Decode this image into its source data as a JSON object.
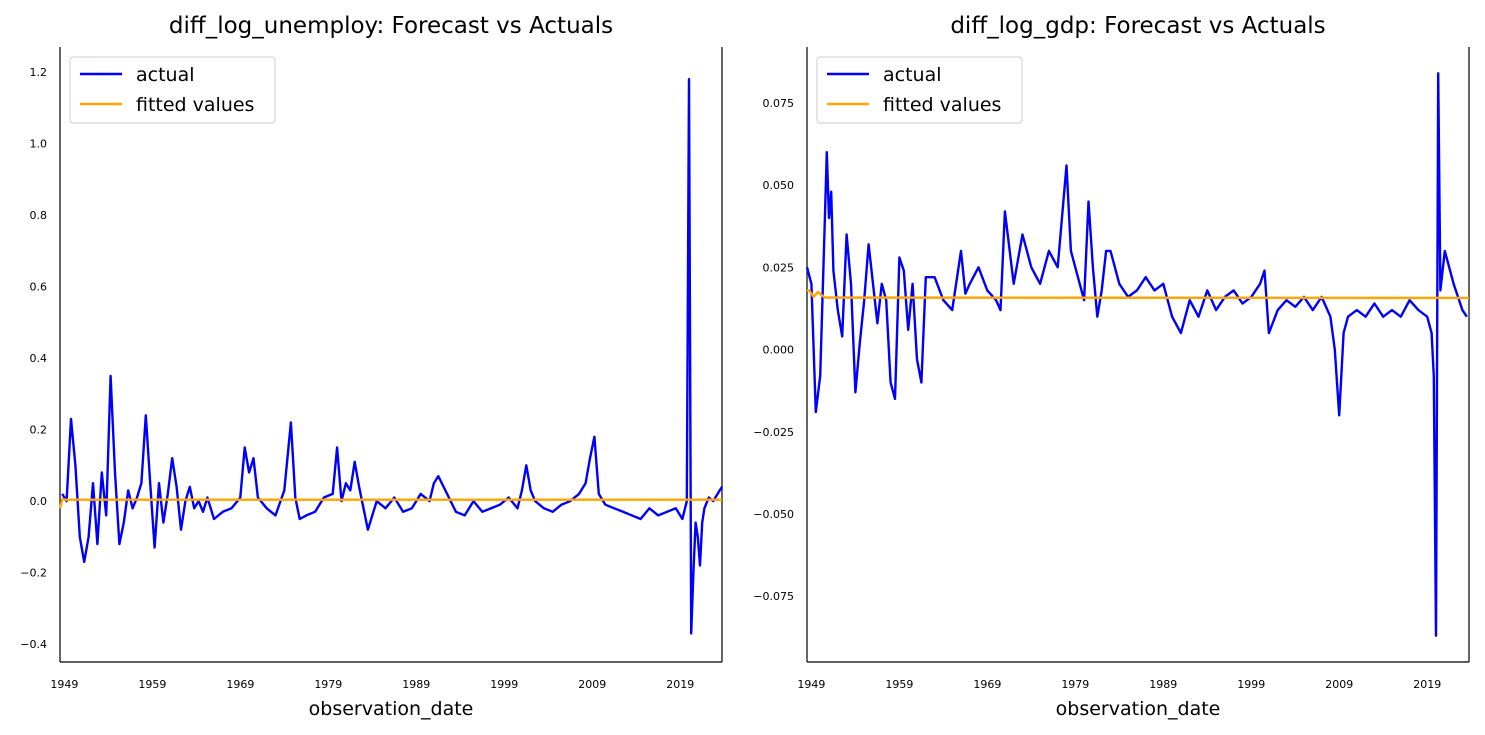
{
  "chart_data": [
    {
      "type": "line",
      "title": "diff_log_unemploy: Forecast vs Actuals",
      "xlabel": "observation_date",
      "ylabel": "",
      "x_unit": "year",
      "xlim": [
        1948.5,
        2023.75
      ],
      "ylim": [
        -0.45,
        1.27
      ],
      "xticks": [
        1949,
        1959,
        1969,
        1979,
        1989,
        1999,
        2009,
        2019
      ],
      "xtick_labels": [
        "1949",
        "1959",
        "1969",
        "1979",
        "1989",
        "1999",
        "2009",
        "2019"
      ],
      "yticks": [
        -0.4,
        -0.2,
        0.0,
        0.2,
        0.4,
        0.6,
        0.8,
        1.0,
        1.2
      ],
      "ytick_labels": [
        "−0.4",
        "−0.2",
        "0.0",
        "0.2",
        "0.4",
        "0.6",
        "0.8",
        "1.0",
        "1.2"
      ],
      "legend": {
        "position": "top-left",
        "entries": [
          "actual",
          "fitted values"
        ]
      },
      "series": [
        {
          "name": "actual",
          "color": "#0000ff",
          "x": [
            1948.75,
            1949.25,
            1949.75,
            1950.25,
            1950.75,
            1951.25,
            1951.75,
            1952.25,
            1952.75,
            1953.25,
            1953.75,
            1954.25,
            1954.75,
            1955.25,
            1955.75,
            1956.25,
            1956.75,
            1957.25,
            1957.75,
            1958.25,
            1958.75,
            1959.25,
            1959.75,
            1960.25,
            1960.75,
            1961.25,
            1961.75,
            1962.25,
            1962.75,
            1963.25,
            1963.75,
            1964.25,
            1964.75,
            1965.25,
            1966.0,
            1967.0,
            1968.0,
            1969.0,
            1969.5,
            1970.0,
            1970.5,
            1971.0,
            1972.0,
            1973.0,
            1974.0,
            1974.75,
            1975.25,
            1975.75,
            1976.5,
            1977.5,
            1978.5,
            1979.5,
            1980.0,
            1980.5,
            1981.0,
            1981.5,
            1982.0,
            1982.5,
            1983.0,
            1983.5,
            1984.5,
            1985.5,
            1986.5,
            1987.5,
            1988.5,
            1989.5,
            1990.5,
            1991.0,
            1991.5,
            1992.5,
            1993.5,
            1994.5,
            1995.5,
            1996.5,
            1997.5,
            1998.5,
            1999.5,
            2000.5,
            2001.0,
            2001.5,
            2002.0,
            2002.5,
            2003.5,
            2004.5,
            2005.5,
            2006.5,
            2007.5,
            2008.25,
            2008.75,
            2009.25,
            2009.75,
            2010.5,
            2011.5,
            2012.5,
            2013.5,
            2014.5,
            2015.5,
            2016.5,
            2017.5,
            2018.5,
            2019.25,
            2019.75,
            2020.0,
            2020.25,
            2020.5,
            2020.75,
            2021.0,
            2021.25,
            2021.5,
            2021.75,
            2022.25,
            2022.75,
            2023.25,
            2023.75
          ],
          "y": [
            0.02,
            0.0,
            0.23,
            0.1,
            -0.1,
            -0.17,
            -0.1,
            0.05,
            -0.12,
            0.08,
            -0.04,
            0.35,
            0.08,
            -0.12,
            -0.06,
            0.03,
            -0.02,
            0.01,
            0.05,
            0.24,
            0.05,
            -0.13,
            0.05,
            -0.06,
            0.02,
            0.12,
            0.04,
            -0.08,
            0.0,
            0.04,
            -0.02,
            0.0,
            -0.03,
            0.01,
            -0.05,
            -0.03,
            -0.02,
            0.01,
            0.15,
            0.08,
            0.12,
            0.01,
            -0.02,
            -0.04,
            0.03,
            0.22,
            0.01,
            -0.05,
            -0.04,
            -0.03,
            0.01,
            0.02,
            0.15,
            0.0,
            0.05,
            0.03,
            0.11,
            0.04,
            -0.02,
            -0.08,
            0.0,
            -0.02,
            0.01,
            -0.03,
            -0.02,
            0.02,
            0.0,
            0.05,
            0.07,
            0.02,
            -0.03,
            -0.04,
            0.0,
            -0.03,
            -0.02,
            -0.01,
            0.01,
            -0.02,
            0.03,
            0.1,
            0.03,
            0.0,
            -0.02,
            -0.03,
            -0.01,
            0.0,
            0.02,
            0.05,
            0.12,
            0.18,
            0.02,
            -0.01,
            -0.02,
            -0.03,
            -0.04,
            -0.05,
            -0.02,
            -0.04,
            -0.03,
            -0.02,
            -0.05,
            0.0,
            1.18,
            -0.37,
            -0.2,
            -0.06,
            -0.1,
            -0.18,
            -0.06,
            -0.02,
            0.01,
            0.0,
            0.02,
            0.04
          ]
        },
        {
          "name": "fitted values",
          "color": "#ffa500",
          "x": [
            1948.5,
            1948.75,
            1949.25,
            1950.0,
            2023.75
          ],
          "y": [
            -0.02,
            0.005,
            0.004,
            0.004,
            0.004
          ]
        }
      ]
    },
    {
      "type": "line",
      "title": "diff_log_gdp: Forecast vs Actuals",
      "xlabel": "observation_date",
      "ylabel": "",
      "x_unit": "year",
      "xlim": [
        1948.5,
        2023.75
      ],
      "ylim": [
        -0.095,
        0.092
      ],
      "xticks": [
        1949,
        1959,
        1969,
        1979,
        1989,
        1999,
        2009,
        2019
      ],
      "xtick_labels": [
        "1949",
        "1959",
        "1969",
        "1979",
        "1989",
        "1999",
        "2009",
        "2019"
      ],
      "yticks": [
        -0.075,
        -0.05,
        -0.025,
        0.0,
        0.025,
        0.05,
        0.075
      ],
      "ytick_labels": [
        "−0.075",
        "−0.050",
        "−0.025",
        "0.000",
        "0.025",
        "0.050",
        "0.075"
      ],
      "legend": {
        "position": "top-left",
        "entries": [
          "actual",
          "fitted values"
        ]
      },
      "series": [
        {
          "name": "actual",
          "color": "#0000ff",
          "x": [
            1948.5,
            1949.0,
            1949.5,
            1950.0,
            1950.5,
            1950.75,
            1951.0,
            1951.25,
            1951.5,
            1952.0,
            1952.5,
            1953.0,
            1953.5,
            1954.0,
            1954.5,
            1955.0,
            1955.5,
            1956.0,
            1956.5,
            1957.0,
            1957.5,
            1958.0,
            1958.5,
            1959.0,
            1959.5,
            1960.0,
            1960.5,
            1961.0,
            1961.5,
            1962.0,
            1963.0,
            1964.0,
            1965.0,
            1966.0,
            1966.5,
            1967.0,
            1968.0,
            1969.0,
            1970.0,
            1970.5,
            1971.0,
            1972.0,
            1973.0,
            1974.0,
            1975.0,
            1976.0,
            1977.0,
            1978.0,
            1978.5,
            1979.0,
            1980.0,
            1980.5,
            1981.0,
            1981.5,
            1982.0,
            1982.5,
            1983.0,
            1984.0,
            1985.0,
            1986.0,
            1987.0,
            1988.0,
            1989.0,
            1990.0,
            1991.0,
            1992.0,
            1993.0,
            1994.0,
            1995.0,
            1996.0,
            1997.0,
            1998.0,
            1999.0,
            2000.0,
            2000.5,
            2001.0,
            2002.0,
            2003.0,
            2004.0,
            2005.0,
            2006.0,
            2007.0,
            2008.0,
            2008.5,
            2009.0,
            2009.5,
            2010.0,
            2011.0,
            2012.0,
            2013.0,
            2014.0,
            2015.0,
            2016.0,
            2017.0,
            2018.0,
            2019.0,
            2019.5,
            2019.75,
            2020.0,
            2020.25,
            2020.5,
            2021.0,
            2021.5,
            2022.0,
            2022.5,
            2023.0,
            2023.5
          ],
          "y": [
            0.025,
            0.02,
            -0.019,
            -0.008,
            0.037,
            0.06,
            0.04,
            0.048,
            0.024,
            0.012,
            0.004,
            0.035,
            0.02,
            -0.013,
            0.002,
            0.015,
            0.032,
            0.02,
            0.008,
            0.02,
            0.015,
            -0.01,
            -0.015,
            0.028,
            0.024,
            0.006,
            0.02,
            -0.003,
            -0.01,
            0.022,
            0.022,
            0.015,
            0.012,
            0.03,
            0.017,
            0.02,
            0.025,
            0.018,
            0.015,
            0.012,
            0.042,
            0.02,
            0.035,
            0.025,
            0.02,
            0.03,
            0.025,
            0.056,
            0.03,
            0.025,
            0.015,
            0.045,
            0.025,
            0.01,
            0.018,
            0.03,
            0.03,
            0.02,
            0.016,
            0.018,
            0.022,
            0.018,
            0.02,
            0.01,
            0.005,
            0.015,
            0.01,
            0.018,
            0.012,
            0.016,
            0.018,
            0.014,
            0.016,
            0.02,
            0.024,
            0.005,
            0.012,
            0.015,
            0.013,
            0.016,
            0.012,
            0.016,
            0.01,
            0.0,
            -0.02,
            0.005,
            0.01,
            0.012,
            0.01,
            0.014,
            0.01,
            0.012,
            0.01,
            0.015,
            0.012,
            0.01,
            0.005,
            -0.008,
            -0.087,
            0.084,
            0.018,
            0.03,
            0.025,
            0.02,
            0.016,
            0.012,
            0.01
          ]
        },
        {
          "name": "fitted values",
          "color": "#ffa500",
          "x": [
            1948.5,
            1948.75,
            1949.25,
            1949.75,
            1950.5,
            2023.75
          ],
          "y": [
            0.018,
            0.018,
            0.016,
            0.0175,
            0.0158,
            0.0157
          ]
        }
      ]
    }
  ]
}
